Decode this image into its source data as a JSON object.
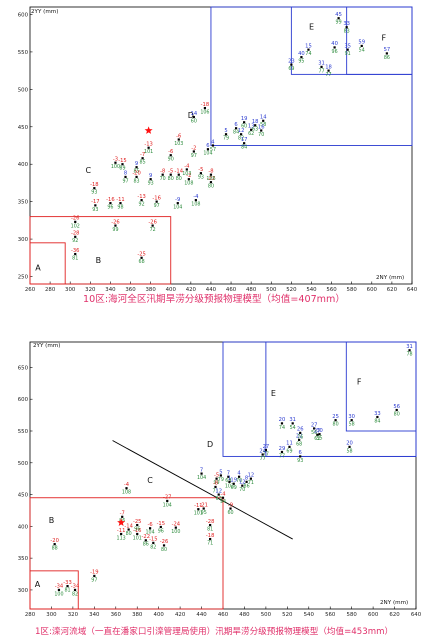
{
  "colors": {
    "zone_red": "#e02020",
    "zone_blue": "#2a3ad0",
    "val_red": "#e02020",
    "val_blue": "#2a3ad0",
    "val_green": "#2a8a3a",
    "caption": "#e0306a",
    "divider": "#000000",
    "marker": "#000000",
    "star": "#ff1010"
  },
  "chart_data": [
    {
      "type": "scatter",
      "title": "10区:海河全区汛期旱涝分级预报物理模型（均值=407mm）",
      "xlabel": "2NY (mm)",
      "ylabel": "2YY (mm)",
      "xlim": [
        260,
        640
      ],
      "ylim": [
        240,
        610
      ],
      "xticks": [
        "260",
        "280",
        "300",
        "320",
        "340",
        "360",
        "380",
        "400",
        "420",
        "440",
        "460",
        "480",
        "500",
        "520",
        "540",
        "560",
        "580",
        "600",
        "620",
        "640"
      ],
      "yticks": [
        "250",
        "300",
        "350",
        "400",
        "450",
        "500",
        "550",
        "600"
      ],
      "zones": [
        {
          "name": "A",
          "color": "red",
          "x0": 260,
          "x1": 295,
          "y0": 240,
          "y1": 295,
          "label_at": [
            268,
            258
          ]
        },
        {
          "name": "B",
          "color": "red",
          "x0": 260,
          "x1": 400,
          "y0": 240,
          "y1": 330,
          "label_at": [
            328,
            268
          ]
        },
        {
          "name": "C",
          "color": "none",
          "label_at": [
            318,
            388
          ]
        },
        {
          "name": "D",
          "color": "blue",
          "x0": 440,
          "x1": 640,
          "y0": 425,
          "y1": 610,
          "label_at": [
            420,
            462
          ]
        },
        {
          "name": "E",
          "color": "blue",
          "x0": 520,
          "x1": 640,
          "y0": 520,
          "y1": 610,
          "label_at": [
            540,
            580
          ]
        },
        {
          "name": "F",
          "color": "blue",
          "x0": 575,
          "x1": 640,
          "y0": 520,
          "y1": 610,
          "label_at": [
            612,
            565
          ]
        }
      ],
      "points": [
        {
          "x": 305,
          "y": 280,
          "top": "-36",
          "bot": "81",
          "c": "red"
        },
        {
          "x": 305,
          "y": 303,
          "top": "-28",
          "bot": "92",
          "c": "red"
        },
        {
          "x": 305,
          "y": 323,
          "top": "-26",
          "bot": "102",
          "c": "red"
        },
        {
          "x": 345,
          "y": 318,
          "top": "-26",
          "bot": "99",
          "c": "red"
        },
        {
          "x": 371,
          "y": 275,
          "top": "-25",
          "bot": "68",
          "c": "red"
        },
        {
          "x": 382,
          "y": 318,
          "top": "-26",
          "bot": "72",
          "c": "red"
        },
        {
          "x": 324,
          "y": 368,
          "top": "-18",
          "bot": "93",
          "c": "red"
        },
        {
          "x": 325,
          "y": 345,
          "top": "-17",
          "bot": "93",
          "c": "red"
        },
        {
          "x": 340,
          "y": 348,
          "top": "-16",
          "bot": "96",
          "c": "red"
        },
        {
          "x": 350,
          "y": 348,
          "top": "-11",
          "bot": "98",
          "c": "red"
        },
        {
          "x": 371,
          "y": 352,
          "top": "-13",
          "bot": "92",
          "c": "red"
        },
        {
          "x": 386,
          "y": 350,
          "top": "-16",
          "bot": "97",
          "c": "red"
        },
        {
          "x": 407,
          "y": 348,
          "top": "-9",
          "bot": "104",
          "c": "blue"
        },
        {
          "x": 425,
          "y": 352,
          "top": "-4",
          "bot": "108",
          "c": "blue"
        },
        {
          "x": 440,
          "y": 376,
          "top": "-22",
          "bot": "80",
          "c": "red"
        },
        {
          "x": 345,
          "y": 402,
          "top": "-3",
          "bot": "100",
          "c": "red"
        },
        {
          "x": 352,
          "y": 400,
          "top": "-15",
          "bot": "89",
          "c": "red"
        },
        {
          "x": 372,
          "y": 408,
          "top": "-7",
          "bot": "85",
          "c": "red"
        },
        {
          "x": 366,
          "y": 396,
          "top": "9",
          "bot": "85",
          "c": "blue"
        },
        {
          "x": 355,
          "y": 383,
          "top": "8",
          "bot": "97",
          "c": "blue"
        },
        {
          "x": 366,
          "y": 383,
          "top": "-20",
          "bot": "83",
          "c": "red"
        },
        {
          "x": 380,
          "y": 380,
          "top": "9",
          "bot": "93",
          "c": "blue"
        },
        {
          "x": 392,
          "y": 386,
          "top": "-8",
          "bot": "70",
          "c": "red"
        },
        {
          "x": 400,
          "y": 386,
          "top": "-5",
          "bot": "80",
          "c": "red"
        },
        {
          "x": 408,
          "y": 386,
          "top": "-14",
          "bot": "80",
          "c": "red"
        },
        {
          "x": 418,
          "y": 380,
          "top": "-2",
          "bot": "108",
          "c": "red"
        },
        {
          "x": 416,
          "y": 393,
          "top": "-4",
          "bot": "103",
          "c": "red"
        },
        {
          "x": 430,
          "y": 388,
          "top": "-5",
          "bot": "93",
          "c": "red"
        },
        {
          "x": 440,
          "y": 386,
          "top": "-8",
          "bot": "106",
          "c": "red"
        },
        {
          "x": 400,
          "y": 412,
          "top": "-6",
          "bot": "90",
          "c": "red"
        },
        {
          "x": 423,
          "y": 417,
          "top": "-2",
          "bot": "97",
          "c": "red"
        },
        {
          "x": 378,
          "y": 422,
          "top": "-13",
          "bot": "101",
          "c": "red"
        },
        {
          "x": 408,
          "y": 433,
          "top": "-6",
          "bot": "103",
          "c": "red"
        },
        {
          "x": 437,
          "y": 420,
          "top": "6",
          "bot": "104",
          "c": "blue"
        },
        {
          "x": 442,
          "y": 425,
          "top": "4",
          "bot": "57",
          "c": "blue"
        },
        {
          "x": 423,
          "y": 463,
          "top": "14",
          "bot": "60",
          "c": "blue"
        },
        {
          "x": 434,
          "y": 475,
          "top": "-18",
          "bot": "106",
          "c": "red"
        },
        {
          "x": 455,
          "y": 440,
          "top": "5",
          "bot": "79",
          "c": "blue"
        },
        {
          "x": 465,
          "y": 448,
          "top": "6",
          "bot": "84",
          "c": "blue"
        },
        {
          "x": 470,
          "y": 440,
          "top": "12",
          "bot": "82",
          "c": "blue"
        },
        {
          "x": 473,
          "y": 428,
          "top": "17",
          "bot": "84",
          "c": "blue"
        },
        {
          "x": 473,
          "y": 456,
          "top": "19",
          "bot": "60",
          "c": "blue"
        },
        {
          "x": 480,
          "y": 446,
          "top": "13",
          "bot": "62",
          "c": "blue"
        },
        {
          "x": 484,
          "y": 452,
          "top": "18",
          "bot": "63",
          "c": "blue"
        },
        {
          "x": 492,
          "y": 458,
          "top": "14",
          "bot": "58",
          "c": "blue"
        },
        {
          "x": 490,
          "y": 445,
          "top": "16",
          "bot": "70",
          "c": "blue"
        },
        {
          "x": 520,
          "y": 533,
          "top": "23",
          "bot": "69",
          "c": "blue"
        },
        {
          "x": 530,
          "y": 543,
          "top": "40",
          "bot": "95",
          "c": "blue"
        },
        {
          "x": 537,
          "y": 553,
          "top": "15",
          "bot": "74",
          "c": "blue"
        },
        {
          "x": 550,
          "y": 530,
          "top": "31",
          "bot": "77",
          "c": "blue"
        },
        {
          "x": 557,
          "y": 525,
          "top": "18",
          "bot": "77",
          "c": "blue"
        },
        {
          "x": 563,
          "y": 556,
          "top": "40",
          "bot": "96",
          "c": "blue"
        },
        {
          "x": 567,
          "y": 595,
          "top": "45",
          "bot": "99",
          "c": "blue"
        },
        {
          "x": 575,
          "y": 583,
          "top": "33",
          "bot": "83",
          "c": "blue"
        },
        {
          "x": 576,
          "y": 553,
          "top": "35",
          "bot": "91",
          "c": "blue"
        },
        {
          "x": 590,
          "y": 558,
          "top": "59",
          "bot": "54",
          "c": "blue"
        },
        {
          "x": 615,
          "y": 548,
          "top": "57",
          "bot": "86",
          "c": "blue"
        },
        {
          "x": 378,
          "y": 445,
          "top": "",
          "bot": "",
          "c": "star"
        }
      ]
    },
    {
      "type": "scatter",
      "title": "1区:滦河流域（一直在潘家口引滦管理局使用）汛期旱涝分级预报物理模型（均值=453mm）",
      "xlabel": "2NY (mm)",
      "ylabel": "2YY (mm)",
      "xlim": [
        280,
        640
      ],
      "ylim": [
        270,
        690
      ],
      "xticks": [
        "280",
        "300",
        "320",
        "340",
        "360",
        "380",
        "400",
        "420",
        "440",
        "460",
        "480",
        "500",
        "520",
        "540",
        "560",
        "580",
        "600",
        "620",
        "640"
      ],
      "yticks": [
        "300",
        "350",
        "400",
        "450",
        "500",
        "550",
        "600",
        "650"
      ],
      "zones": [
        {
          "name": "A",
          "color": "red",
          "x0": 280,
          "x1": 325,
          "y0": 270,
          "y1": 330,
          "label_at": [
            287,
            305
          ]
        },
        {
          "name": "B",
          "color": "red",
          "x0": 280,
          "x1": 460,
          "y0": 270,
          "y1": 445,
          "label_at": [
            300,
            405
          ]
        },
        {
          "name": "C",
          "color": "none",
          "label_at": [
            392,
            468
          ]
        },
        {
          "name": "D",
          "color": "blue",
          "x0": 460,
          "x1": 640,
          "y0": 510,
          "y1": 690,
          "label_at": [
            448,
            525
          ]
        },
        {
          "name": "E",
          "color": "blue",
          "x0": 500,
          "x1": 640,
          "y0": 510,
          "y1": 690,
          "label_at": [
            507,
            605
          ]
        },
        {
          "name": "F",
          "color": "blue",
          "x0": 575,
          "x1": 640,
          "y0": 550,
          "y1": 690,
          "label_at": [
            587,
            623
          ]
        }
      ],
      "divider": [
        [
          357,
          535
        ],
        [
          525,
          380
        ]
      ],
      "points": [
        {
          "x": 307,
          "y": 300,
          "top": "-34",
          "bot": "100",
          "c": "red"
        },
        {
          "x": 315,
          "y": 306,
          "top": "-33",
          "bot": "81",
          "c": "red"
        },
        {
          "x": 322,
          "y": 300,
          "top": "-34",
          "bot": "82",
          "c": "red"
        },
        {
          "x": 340,
          "y": 322,
          "top": "-19",
          "bot": "97",
          "c": "red"
        },
        {
          "x": 303,
          "y": 372,
          "top": "-20",
          "bot": "88",
          "c": "red"
        },
        {
          "x": 365,
          "y": 388,
          "top": "-11",
          "bot": "113",
          "c": "red"
        },
        {
          "x": 372,
          "y": 395,
          "top": "-14",
          "bot": "80",
          "c": "red"
        },
        {
          "x": 380,
          "y": 388,
          "top": "-16",
          "bot": "101",
          "c": "red"
        },
        {
          "x": 388,
          "y": 378,
          "top": "-22",
          "bot": "86",
          "c": "red"
        },
        {
          "x": 395,
          "y": 374,
          "top": "-15",
          "bot": "82",
          "c": "red"
        },
        {
          "x": 405,
          "y": 370,
          "top": "-26",
          "bot": "80",
          "c": "red"
        },
        {
          "x": 380,
          "y": 402,
          "top": "-25",
          "bot": "96",
          "c": "red"
        },
        {
          "x": 392,
          "y": 397,
          "top": "-6",
          "bot": "104",
          "c": "red"
        },
        {
          "x": 402,
          "y": 399,
          "top": "-15",
          "bot": "96",
          "c": "red"
        },
        {
          "x": 416,
          "y": 398,
          "top": "-24",
          "bot": "100",
          "c": "red"
        },
        {
          "x": 448,
          "y": 380,
          "top": "-18",
          "bot": "71",
          "c": "red"
        },
        {
          "x": 448,
          "y": 402,
          "top": "-28",
          "bot": "81",
          "c": "red"
        },
        {
          "x": 366,
          "y": 415,
          "top": "-7",
          "bot": "86",
          "c": "red"
        },
        {
          "x": 408,
          "y": 440,
          "top": "-27",
          "bot": "104",
          "c": "red"
        },
        {
          "x": 370,
          "y": 460,
          "top": "-4",
          "bot": "108",
          "c": "red"
        },
        {
          "x": 437,
          "y": 427,
          "top": "-11",
          "bot": "101",
          "c": "red"
        },
        {
          "x": 442,
          "y": 428,
          "top": "-21",
          "bot": "95",
          "c": "red"
        },
        {
          "x": 467,
          "y": 428,
          "top": "-9",
          "bot": "60",
          "c": "red"
        },
        {
          "x": 454,
          "y": 475,
          "top": "-5",
          "bot": "99",
          "c": "red"
        },
        {
          "x": 453,
          "y": 462,
          "top": "-8",
          "bot": "71",
          "c": "red"
        },
        {
          "x": 460,
          "y": 445,
          "top": "-4",
          "bot": "94",
          "c": "red"
        },
        {
          "x": 440,
          "y": 483,
          "top": "7",
          "bot": "104",
          "c": "blue"
        },
        {
          "x": 458,
          "y": 480,
          "top": "5",
          "bot": "79",
          "c": "blue"
        },
        {
          "x": 465,
          "y": 478,
          "top": "7",
          "bot": "68",
          "c": "blue"
        },
        {
          "x": 456,
          "y": 450,
          "top": "12",
          "bot": "63",
          "c": "blue"
        },
        {
          "x": 466,
          "y": 470,
          "top": "1",
          "bot": "103",
          "c": "blue"
        },
        {
          "x": 470,
          "y": 467,
          "top": "19",
          "bot": "69",
          "c": "blue"
        },
        {
          "x": 478,
          "y": 464,
          "top": "12",
          "bot": "70",
          "c": "blue"
        },
        {
          "x": 482,
          "y": 470,
          "top": "8",
          "bot": "86",
          "c": "blue"
        },
        {
          "x": 475,
          "y": 478,
          "top": "4",
          "bot": "70",
          "c": "blue"
        },
        {
          "x": 486,
          "y": 475,
          "top": "12",
          "bot": "71",
          "c": "blue"
        },
        {
          "x": 500,
          "y": 520,
          "top": "27",
          "bot": "77",
          "c": "blue"
        },
        {
          "x": 515,
          "y": 517,
          "top": "29",
          "bot": "77",
          "c": "blue"
        },
        {
          "x": 522,
          "y": 525,
          "top": "11",
          "bot": "69",
          "c": "blue"
        },
        {
          "x": 532,
          "y": 510,
          "top": "6",
          "bot": "93",
          "c": "blue"
        },
        {
          "x": 531,
          "y": 536,
          "top": "22",
          "bot": "68",
          "c": "blue"
        },
        {
          "x": 532,
          "y": 547,
          "top": "26",
          "bot": "76",
          "c": "blue"
        },
        {
          "x": 545,
          "y": 554,
          "top": "27",
          "bot": "56",
          "c": "blue"
        },
        {
          "x": 548,
          "y": 544,
          "top": "27",
          "bot": "62",
          "c": "blue"
        },
        {
          "x": 515,
          "y": 562,
          "top": "20",
          "bot": "74",
          "c": "blue"
        },
        {
          "x": 525,
          "y": 562,
          "top": "31",
          "bot": "54",
          "c": "blue"
        },
        {
          "x": 550,
          "y": 545,
          "top": "30",
          "bot": "55",
          "c": "blue"
        },
        {
          "x": 578,
          "y": 525,
          "top": "20",
          "bot": "58",
          "c": "blue"
        },
        {
          "x": 580,
          "y": 567,
          "top": "30",
          "bot": "58",
          "c": "blue"
        },
        {
          "x": 604,
          "y": 572,
          "top": "33",
          "bot": "84",
          "c": "blue"
        },
        {
          "x": 565,
          "y": 567,
          "top": "25",
          "bot": "80",
          "c": "blue"
        },
        {
          "x": 622,
          "y": 583,
          "top": "56",
          "bot": "80",
          "c": "blue"
        },
        {
          "x": 634,
          "y": 677,
          "top": "31",
          "bot": "78",
          "c": "blue"
        },
        {
          "x": 497,
          "y": 513,
          "top": "24",
          "bot": "77",
          "c": "blue"
        },
        {
          "x": 365,
          "y": 406,
          "top": "",
          "bot": "",
          "c": "star"
        }
      ]
    }
  ]
}
